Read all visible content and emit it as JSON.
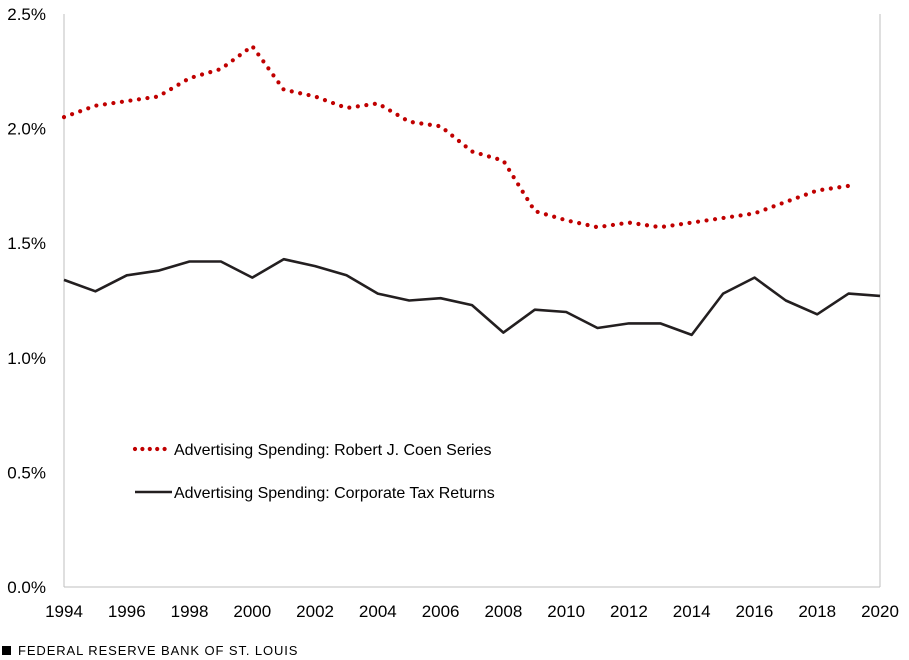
{
  "chart_data": {
    "type": "line",
    "title": "",
    "xlabel": "",
    "ylabel": "",
    "xlim": [
      1994,
      2020
    ],
    "ylim": [
      0,
      2.5
    ],
    "x_ticks": [
      1994,
      1996,
      1998,
      2000,
      2002,
      2004,
      2006,
      2008,
      2010,
      2012,
      2014,
      2016,
      2018,
      2020
    ],
    "y_ticks": [
      0.0,
      0.5,
      1.0,
      1.5,
      2.0,
      2.5
    ],
    "x_tick_labels": [
      "1994",
      "1996",
      "1998",
      "2000",
      "2002",
      "2004",
      "2006",
      "2008",
      "2010",
      "2012",
      "2014",
      "2016",
      "2018",
      "2020"
    ],
    "y_tick_labels": [
      "0.0%",
      "0.5%",
      "1.0%",
      "1.5%",
      "2.0%",
      "2.5%"
    ],
    "grid": false,
    "legend_position": "lower-left",
    "series": [
      {
        "name": "Advertising Spending: Robert J. Coen Series",
        "color": "#c00000",
        "style": "dotted",
        "x": [
          1994,
          1995,
          1996,
          1997,
          1998,
          1999,
          2000,
          2001,
          2002,
          2003,
          2004,
          2005,
          2006,
          2007,
          2008,
          2009,
          2010,
          2011,
          2012,
          2013,
          2014,
          2015,
          2016,
          2017,
          2018,
          2019
        ],
        "values": [
          2.05,
          2.1,
          2.12,
          2.14,
          2.22,
          2.26,
          2.36,
          2.17,
          2.14,
          2.09,
          2.11,
          2.03,
          2.01,
          1.9,
          1.86,
          1.64,
          1.6,
          1.57,
          1.59,
          1.57,
          1.59,
          1.61,
          1.63,
          1.68,
          1.73,
          1.75
        ]
      },
      {
        "name": "Advertising Spending: Corporate Tax Returns",
        "color": "#231f20",
        "style": "solid",
        "x": [
          1994,
          1995,
          1996,
          1997,
          1998,
          1999,
          2000,
          2001,
          2002,
          2003,
          2004,
          2005,
          2006,
          2007,
          2008,
          2009,
          2010,
          2011,
          2012,
          2013,
          2014,
          2015,
          2016,
          2017,
          2018,
          2019,
          2020
        ],
        "values": [
          1.34,
          1.29,
          1.36,
          1.38,
          1.42,
          1.42,
          1.35,
          1.43,
          1.4,
          1.36,
          1.28,
          1.25,
          1.26,
          1.23,
          1.11,
          1.21,
          1.2,
          1.13,
          1.15,
          1.15,
          1.1,
          1.28,
          1.35,
          1.25,
          1.19,
          1.28,
          1.27
        ]
      }
    ]
  },
  "footer": {
    "text": "FEDERAL RESERVE BANK OF ST. LOUIS"
  }
}
